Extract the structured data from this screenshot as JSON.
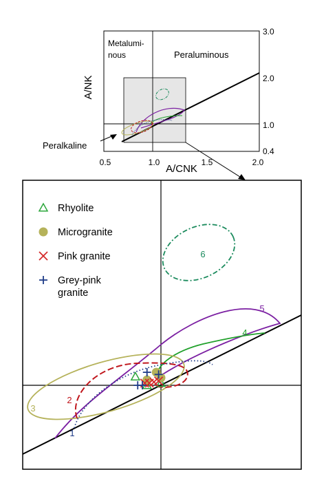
{
  "chart_data": [
    {
      "type": "line",
      "title": "",
      "xlabel": "A/CNK",
      "ylabel": "A/NK",
      "xlim": [
        0.5,
        2.0
      ],
      "ylim": [
        0.4,
        3.0
      ],
      "x_ticks": [
        "0.5",
        "1.0",
        "1.5",
        "2.0"
      ],
      "y_ticks": [
        "0.4",
        "1.0",
        "2.0",
        "3.0"
      ],
      "grid": false,
      "region_labels": [
        "Metalumi-",
        "nous",
        "Peraluminous",
        "Peralkaline"
      ],
      "reference_lines": {
        "vertical_x": 1.0,
        "horizontal_y": 1.0,
        "diagonal_from": [
          0.5,
          0.5
        ],
        "diagonal_to": [
          2.0,
          2.0
        ]
      },
      "zoom_box": {
        "x": [
          0.7,
          1.3
        ],
        "y": [
          0.6,
          2.0
        ]
      },
      "ellipses": [
        {
          "id": "1",
          "color": "#1f3c88",
          "style": "dotted",
          "cx": 0.85,
          "cy": 0.9,
          "rx": 0.2,
          "ry": 0.2
        },
        {
          "id": "2",
          "color": "#c0161c",
          "style": "dashed",
          "cx": 0.88,
          "cy": 0.92,
          "rx": 0.13,
          "ry": 0.15
        },
        {
          "id": "3",
          "color": "#b5b25a",
          "style": "solid",
          "cx": 0.85,
          "cy": 0.93,
          "rx": 0.22,
          "ry": 0.15
        },
        {
          "id": "4",
          "color": "#1fa02a",
          "style": "solid",
          "cx": 1.0,
          "cy": 1.05,
          "rx": 0.15,
          "ry": 0.1
        },
        {
          "id": "5",
          "color": "#7b1fa2",
          "style": "solid",
          "cx": 1.05,
          "cy": 1.15,
          "rx": 0.25,
          "ry": 0.2
        },
        {
          "id": "6",
          "color": "#1a8a5c",
          "style": "dashdot",
          "cx": 1.05,
          "cy": 1.65,
          "rx": 0.1,
          "ry": 0.12
        }
      ]
    },
    {
      "type": "scatter",
      "title": "",
      "legend_position": "top-left",
      "legend": [
        {
          "label": "Rhyolite",
          "marker": "triangle",
          "color": "#2aa63a"
        },
        {
          "label": "Microgranite",
          "marker": "circle",
          "color": "#b5b25a"
        },
        {
          "label": "Pink granite",
          "marker": "x",
          "color": "#d42a2a"
        },
        {
          "label": "Grey-pink\ngranite",
          "marker": "plus",
          "color": "#1f3c88"
        }
      ],
      "reference_lines": {
        "vertical_x": 1.0,
        "horizontal_y": 1.0,
        "diagonal_from": [
          0.7,
          0.6
        ],
        "diagonal_to": [
          1.3,
          1.4
        ]
      },
      "series": [
        {
          "name": "Rhyolite",
          "points": [
            [
              0.89,
              1.08
            ],
            [
              0.94,
              1.0
            ],
            [
              1.0,
              1.02
            ]
          ]
        },
        {
          "name": "Microgranite",
          "points": [
            [
              0.94,
              1.05
            ],
            [
              0.98,
              1.12
            ],
            [
              1.0,
              1.07
            ]
          ]
        },
        {
          "name": "Pink granite",
          "points": [
            [
              0.93,
              1.02
            ],
            [
              0.95,
              1.02
            ],
            [
              0.97,
              1.03
            ],
            [
              0.99,
              1.04
            ]
          ]
        },
        {
          "name": "Grey-pink granite",
          "points": [
            [
              0.9,
              1.0
            ],
            [
              0.92,
              1.0
            ],
            [
              0.94,
              1.12
            ],
            [
              0.99,
              1.1
            ]
          ]
        }
      ],
      "ellipses": [
        {
          "id": "1",
          "color": "#1f3c88",
          "style": "dotted"
        },
        {
          "id": "2",
          "color": "#c0161c",
          "style": "dashed"
        },
        {
          "id": "3",
          "color": "#b5b25a",
          "style": "solid"
        },
        {
          "id": "4",
          "color": "#1fa02a",
          "style": "solid"
        },
        {
          "id": "5",
          "color": "#7b1fa2",
          "style": "solid"
        },
        {
          "id": "6",
          "color": "#1a8a5c",
          "style": "dashdot"
        }
      ]
    }
  ]
}
